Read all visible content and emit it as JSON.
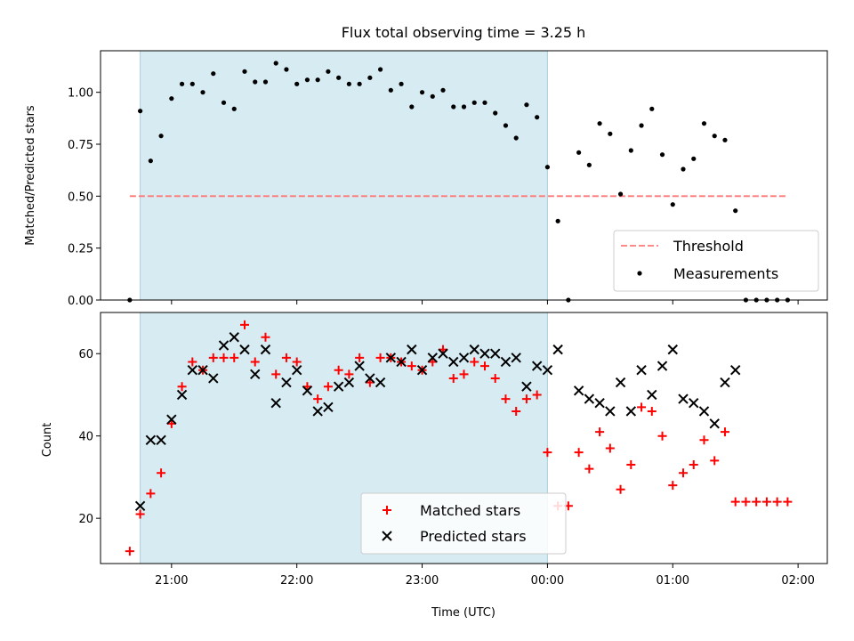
{
  "chart_data": [
    {
      "type": "scatter",
      "title": "Flux total observing time = 3.25 h",
      "xlabel": "",
      "ylabel": "Matched/Predicted stars",
      "xlim": [
        "20:26",
        "02:14"
      ],
      "ylim": [
        0,
        1.2
      ],
      "yticks": [
        "0.00",
        "0.25",
        "0.50",
        "0.75",
        "1.00"
      ],
      "xticks": [
        "21:00",
        "22:00",
        "23:00",
        "00:00",
        "01:00",
        "02:00"
      ],
      "shaded_interval": [
        "20:45",
        "00:00"
      ],
      "threshold": {
        "name": "Threshold",
        "value": 0.5,
        "x_range": [
          "20:40",
          "01:55"
        ],
        "color": "#ff7777"
      },
      "legend": {
        "placement": "lower-right",
        "entries": [
          "Threshold",
          "Measurements"
        ]
      },
      "series": [
        {
          "name": "Measurements",
          "color": "#000000",
          "x": [
            "20:40",
            "20:45",
            "20:50",
            "20:55",
            "21:00",
            "21:05",
            "21:10",
            "21:15",
            "21:20",
            "21:25",
            "21:30",
            "21:35",
            "21:40",
            "21:45",
            "21:50",
            "21:55",
            "22:00",
            "22:05",
            "22:10",
            "22:15",
            "22:20",
            "22:25",
            "22:30",
            "22:35",
            "22:40",
            "22:45",
            "22:50",
            "22:55",
            "23:00",
            "23:05",
            "23:10",
            "23:15",
            "23:20",
            "23:25",
            "23:30",
            "23:35",
            "23:40",
            "23:45",
            "23:50",
            "23:55",
            "00:00",
            "00:05",
            "00:10",
            "00:15",
            "00:20",
            "00:25",
            "00:30",
            "00:35",
            "00:40",
            "00:45",
            "00:50",
            "00:55",
            "01:00",
            "01:05",
            "01:10",
            "01:15",
            "01:20",
            "01:25",
            "01:30",
            "01:35",
            "01:40",
            "01:45",
            "01:50",
            "01:55"
          ],
          "y": [
            0.0,
            0.91,
            0.67,
            0.79,
            0.97,
            1.04,
            1.04,
            1.0,
            1.09,
            0.95,
            0.92,
            1.1,
            1.05,
            1.05,
            1.14,
            1.11,
            1.04,
            1.06,
            1.06,
            1.1,
            1.07,
            1.04,
            1.04,
            1.07,
            1.11,
            1.01,
            1.04,
            0.93,
            1.0,
            0.98,
            1.01,
            0.93,
            0.93,
            0.95,
            0.95,
            0.9,
            0.84,
            0.78,
            0.94,
            0.88,
            0.64,
            0.38,
            0.0,
            0.71,
            0.65,
            0.85,
            0.8,
            0.51,
            0.72,
            0.84,
            0.92,
            0.7,
            0.46,
            0.63,
            0.68,
            0.85,
            0.79,
            0.77,
            0.43,
            0.0,
            0.0,
            0.0,
            0.0,
            0.0
          ]
        }
      ]
    },
    {
      "type": "scatter",
      "title": "",
      "xlabel": "Time (UTC)",
      "ylabel": "Count",
      "xlim": [
        "20:26",
        "02:14"
      ],
      "ylim": [
        9,
        70
      ],
      "yticks": [
        "20",
        "40",
        "60"
      ],
      "xticks": [
        "21:00",
        "22:00",
        "23:00",
        "00:00",
        "01:00",
        "02:00"
      ],
      "shaded_interval": [
        "20:45",
        "00:00"
      ],
      "legend": {
        "placement": "lower-center",
        "entries": [
          "Matched stars",
          "Predicted stars"
        ]
      },
      "series": [
        {
          "name": "Matched stars",
          "marker": "plus",
          "color": "#ff0000",
          "x": [
            "20:40",
            "20:45",
            "20:50",
            "20:55",
            "21:00",
            "21:05",
            "21:10",
            "21:15",
            "21:20",
            "21:25",
            "21:30",
            "21:35",
            "21:40",
            "21:45",
            "21:50",
            "21:55",
            "22:00",
            "22:05",
            "22:10",
            "22:15",
            "22:20",
            "22:25",
            "22:30",
            "22:35",
            "22:40",
            "22:45",
            "22:50",
            "22:55",
            "23:00",
            "23:05",
            "23:10",
            "23:15",
            "23:20",
            "23:25",
            "23:30",
            "23:35",
            "23:40",
            "23:45",
            "23:50",
            "23:55",
            "00:00",
            "00:05",
            "00:10",
            "00:15",
            "00:20",
            "00:25",
            "00:30",
            "00:35",
            "00:40",
            "00:45",
            "00:50",
            "00:55",
            "01:00",
            "01:05",
            "01:10",
            "01:15",
            "01:20",
            "01:25",
            "01:30",
            "01:35",
            "01:40",
            "01:45",
            "01:50",
            "01:55"
          ],
          "y": [
            12,
            21,
            26,
            31,
            43,
            52,
            58,
            56,
            59,
            59,
            59,
            67,
            58,
            64,
            55,
            59,
            58,
            52,
            49,
            52,
            56,
            55,
            59,
            53,
            59,
            59,
            58,
            57,
            56,
            58,
            61,
            54,
            55,
            58,
            57,
            54,
            49,
            46,
            49,
            50,
            36,
            23,
            23,
            36,
            32,
            41,
            37,
            27,
            33,
            47,
            46,
            40,
            28,
            31,
            33,
            39,
            34,
            41,
            24,
            24,
            24,
            24,
            24,
            24
          ]
        },
        {
          "name": "Predicted stars",
          "marker": "x",
          "color": "#000000",
          "x": [
            "20:45",
            "20:50",
            "20:55",
            "21:00",
            "21:05",
            "21:10",
            "21:15",
            "21:20",
            "21:25",
            "21:30",
            "21:35",
            "21:40",
            "21:45",
            "21:50",
            "21:55",
            "22:00",
            "22:05",
            "22:10",
            "22:15",
            "22:20",
            "22:25",
            "22:30",
            "22:35",
            "22:40",
            "22:45",
            "22:50",
            "22:55",
            "23:00",
            "23:05",
            "23:10",
            "23:15",
            "23:20",
            "23:25",
            "23:30",
            "23:35",
            "23:40",
            "23:45",
            "23:50",
            "23:55",
            "00:00",
            "00:05",
            "00:15",
            "00:20",
            "00:25",
            "00:30",
            "00:35",
            "00:40",
            "00:45",
            "00:50",
            "00:55",
            "01:00",
            "01:05",
            "01:10",
            "01:15",
            "01:20",
            "01:25",
            "01:30"
          ],
          "y": [
            23,
            39,
            39,
            44,
            50,
            56,
            56,
            54,
            62,
            64,
            61,
            55,
            61,
            48,
            53,
            56,
            51,
            46,
            47,
            52,
            53,
            57,
            54,
            53,
            59,
            58,
            61,
            56,
            59,
            60,
            58,
            59,
            61,
            60,
            60,
            58,
            59,
            52,
            57,
            56,
            61,
            51,
            49,
            48,
            46,
            53,
            46,
            56,
            50,
            57,
            61,
            49,
            48,
            46,
            43,
            53,
            56
          ]
        }
      ]
    }
  ]
}
